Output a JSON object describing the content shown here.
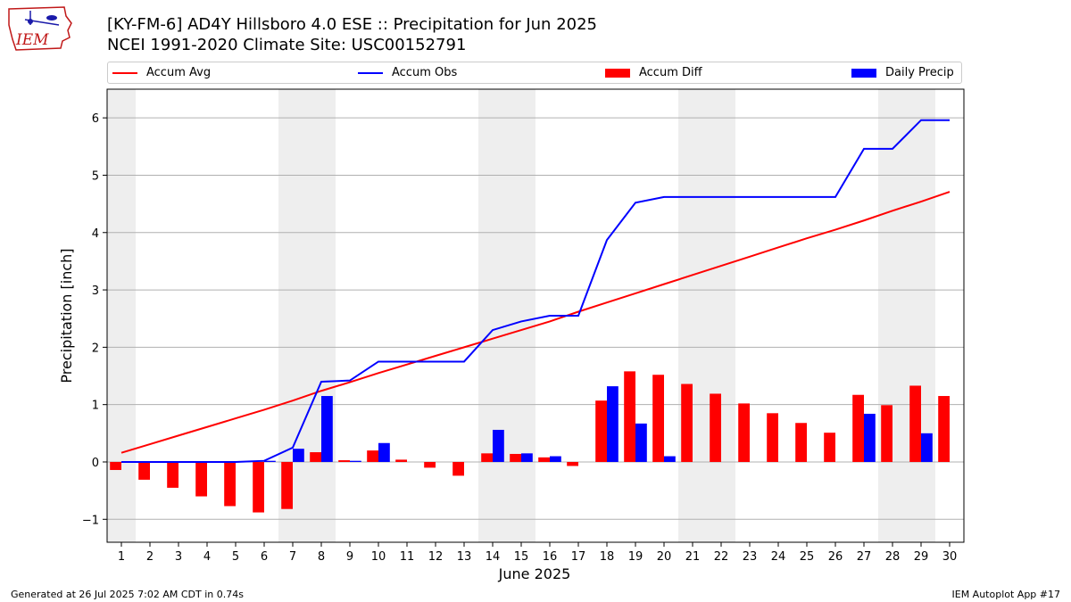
{
  "header": {
    "title_line1": "[KY-FM-6] AD4Y Hillsboro 4.0 ESE :: Precipitation for Jun 2025",
    "title_line2": "NCEI 1991-2020 Climate Site: USC00152791",
    "logo_text": "IEM"
  },
  "footer": {
    "left": "Generated at 26 Jul 2025 7:02 AM CDT in 0.74s",
    "right": "IEM Autoplot App #17"
  },
  "chart_data": {
    "type": "bar",
    "xlabel": "June 2025",
    "ylabel": "Precipitation [inch]",
    "ylim": [
      -1.4,
      6.5
    ],
    "yticks": [
      -1,
      0,
      1,
      2,
      3,
      4,
      5,
      6
    ],
    "ytick_labels": [
      "−1",
      "0",
      "1",
      "2",
      "3",
      "4",
      "5",
      "6"
    ],
    "grid": true,
    "legend_position": "top, above plot",
    "weekend_shading_days": [
      1,
      7,
      8,
      14,
      15,
      21,
      22,
      28,
      29
    ],
    "categories": [
      "1",
      "2",
      "3",
      "4",
      "5",
      "6",
      "7",
      "8",
      "9",
      "10",
      "11",
      "12",
      "13",
      "14",
      "15",
      "16",
      "17",
      "18",
      "19",
      "20",
      "21",
      "22",
      "23",
      "24",
      "25",
      "26",
      "27",
      "28",
      "29",
      "30"
    ],
    "series": [
      {
        "name": "Accum Avg",
        "kind": "line",
        "color": "#ff0000",
        "values": [
          0.16,
          0.31,
          0.46,
          0.61,
          0.76,
          0.91,
          1.07,
          1.24,
          1.39,
          1.55,
          1.7,
          1.85,
          2.0,
          2.15,
          2.3,
          2.45,
          2.62,
          2.78,
          2.94,
          3.1,
          3.26,
          3.42,
          3.58,
          3.74,
          3.9,
          4.05,
          4.21,
          4.38,
          4.54,
          4.71
        ]
      },
      {
        "name": "Accum Obs",
        "kind": "line",
        "color": "#0000ff",
        "values": [
          0.0,
          0.0,
          0.0,
          0.0,
          0.0,
          0.02,
          0.25,
          1.4,
          1.42,
          1.75,
          1.75,
          1.75,
          1.75,
          2.3,
          2.45,
          2.55,
          2.55,
          3.87,
          4.52,
          4.62,
          4.62,
          4.62,
          4.62,
          4.62,
          4.62,
          4.62,
          5.46,
          5.46,
          5.96,
          5.96
        ]
      },
      {
        "name": "Accum Diff",
        "kind": "bar",
        "color": "#ff0000",
        "values": [
          -0.14,
          -0.31,
          -0.45,
          -0.6,
          -0.77,
          -0.88,
          -0.82,
          0.17,
          0.03,
          0.2,
          0.04,
          -0.1,
          -0.24,
          0.15,
          0.14,
          0.08,
          -0.07,
          1.07,
          1.58,
          1.52,
          1.36,
          1.19,
          1.02,
          0.85,
          0.68,
          0.51,
          1.17,
          0.99,
          1.33,
          1.15
        ]
      },
      {
        "name": "Daily Precip",
        "kind": "bar",
        "color": "#0000ff",
        "values": [
          0.0,
          0.0,
          0.0,
          0.0,
          0.0,
          0.02,
          0.23,
          1.15,
          0.02,
          0.33,
          0.0,
          0.0,
          0.0,
          0.56,
          0.15,
          0.1,
          0.0,
          1.32,
          0.67,
          0.1,
          0.0,
          0.0,
          0.0,
          0.0,
          0.0,
          0.0,
          0.84,
          0.0,
          0.5,
          0.0
        ]
      }
    ]
  }
}
